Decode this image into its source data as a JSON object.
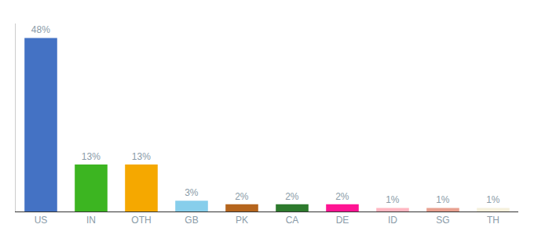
{
  "chart_data": {
    "type": "bar",
    "categories": [
      "US",
      "IN",
      "OTH",
      "GB",
      "PK",
      "CA",
      "DE",
      "ID",
      "SG",
      "TH"
    ],
    "values": [
      48,
      13,
      13,
      3,
      2,
      2,
      2,
      1,
      1,
      1
    ],
    "value_labels": [
      "48%",
      "13%",
      "13%",
      "3%",
      "2%",
      "2%",
      "2%",
      "1%",
      "1%",
      "1%"
    ],
    "colors": [
      "#4472c4",
      "#3cb521",
      "#f5a800",
      "#87ceeb",
      "#b5651d",
      "#2d7a2d",
      "#ff1493",
      "#ffb6c1",
      "#e8a090",
      "#f5f0dc"
    ],
    "ylim": [
      0,
      52
    ],
    "yticks": [],
    "grid": false,
    "data_labels": true,
    "tick_labels": "x"
  }
}
